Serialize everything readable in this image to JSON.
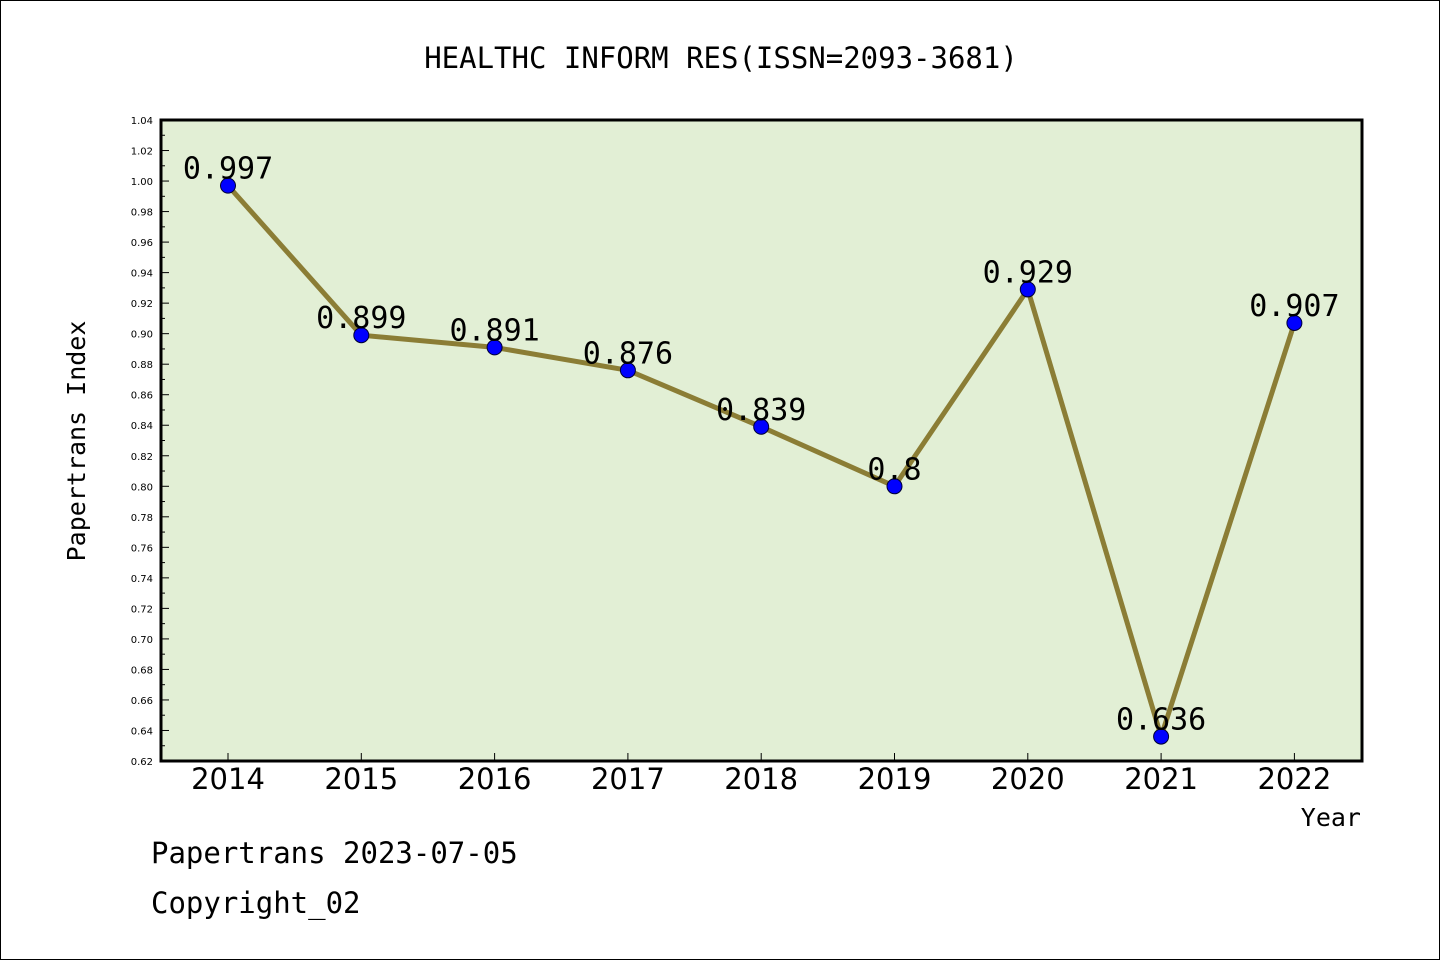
{
  "footer": {
    "line1": "Papertrans 2023-07-05",
    "line2": "Copyright_02"
  },
  "chart_data": {
    "type": "line",
    "title": "HEALTHC INFORM RES(ISSN=2093-3681)",
    "xlabel": "Year",
    "ylabel": "Papertrans Index",
    "categories": [
      "2014",
      "2015",
      "2016",
      "2017",
      "2018",
      "2019",
      "2020",
      "2021",
      "2022"
    ],
    "series": [
      {
        "values": [
          0.997,
          0.899,
          0.891,
          0.876,
          0.839,
          0.8,
          0.929,
          0.636,
          0.907
        ],
        "data_labels": [
          "0.997",
          "0.899",
          "0.891",
          "0.876",
          "0.839",
          "0.8",
          "0.929",
          "0.636",
          "0.907"
        ]
      }
    ],
    "ylim": [
      0.62,
      1.04
    ],
    "yticks": [
      "0.62",
      "0.64",
      "0.66",
      "0.68",
      "0.70",
      "0.72",
      "0.74",
      "0.76",
      "0.78",
      "0.80",
      "0.82",
      "0.84",
      "0.86",
      "0.88",
      "0.90",
      "0.92",
      "0.94",
      "0.96",
      "0.98",
      "1.00",
      "1.02",
      "1.04"
    ],
    "grid": false,
    "legend": "none",
    "colors": {
      "plot_background": "#e2efd5",
      "line": "#8b7d35",
      "marker": "#0000ff",
      "axis": "#000000"
    }
  }
}
